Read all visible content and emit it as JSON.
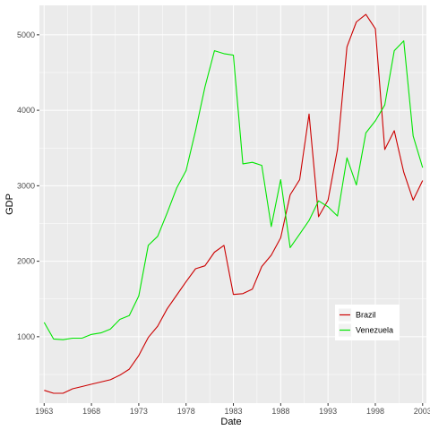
{
  "chart_data": {
    "type": "line",
    "xlabel": "Date",
    "ylabel": "GDP",
    "xlim": [
      1962.5,
      2003.4
    ],
    "ylim": [
      120,
      5390
    ],
    "x_ticks": [
      1963,
      1968,
      1973,
      1978,
      1983,
      1988,
      1993,
      1998,
      2003
    ],
    "y_ticks": [
      1000,
      2000,
      3000,
      4000,
      5000
    ],
    "grid": true,
    "panel_background": "#EBEBEB",
    "grid_color": "#FFFFFF",
    "legend": {
      "position": "bottom-right-inside"
    },
    "x": [
      1963,
      1964,
      1965,
      1966,
      1967,
      1968,
      1969,
      1970,
      1971,
      1972,
      1973,
      1974,
      1975,
      1976,
      1977,
      1978,
      1979,
      1980,
      1981,
      1982,
      1983,
      1984,
      1985,
      1986,
      1987,
      1988,
      1989,
      1990,
      1991,
      1992,
      1993,
      1994,
      1995,
      1996,
      1997,
      1998,
      1999,
      2000,
      2001,
      2002,
      2003
    ],
    "series": [
      {
        "name": "Brazil",
        "color": "#CC0000",
        "values": [
          290,
          250,
          250,
          310,
          340,
          370,
          400,
          430,
          490,
          570,
          750,
          990,
          1140,
          1370,
          1550,
          1730,
          1900,
          1940,
          2120,
          2210,
          1560,
          1570,
          1630,
          1930,
          2080,
          2310,
          2880,
          3080,
          3950,
          2590,
          2810,
          3480,
          4840,
          5170,
          5270,
          5080,
          3480,
          3730,
          3180,
          2810,
          3070
        ]
      },
      {
        "name": "Venezuela",
        "color": "#00E600",
        "values": [
          1190,
          970,
          960,
          980,
          980,
          1030,
          1050,
          1100,
          1230,
          1280,
          1540,
          2210,
          2330,
          2640,
          2970,
          3200,
          3730,
          4310,
          4790,
          4750,
          4730,
          3290,
          3310,
          3270,
          2460,
          3080,
          2180,
          2360,
          2540,
          2800,
          2720,
          2600,
          3370,
          3010,
          3700,
          3860,
          4070,
          4790,
          4920,
          3660,
          3240
        ]
      }
    ]
  }
}
